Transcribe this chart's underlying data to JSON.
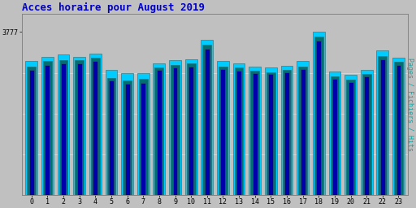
{
  "title": "Acces horaire pour August 2019",
  "title_color": "#0000cc",
  "title_fontsize": 9,
  "ylabel_right": "Pages / Fichiers / Hits",
  "ylabel_right_color": "#00aaaa",
  "background_color": "#c0c0c0",
  "plot_bg_color": "#c0c0c0",
  "hours": [
    0,
    1,
    2,
    3,
    4,
    5,
    6,
    7,
    8,
    9,
    10,
    11,
    12,
    13,
    14,
    15,
    16,
    17,
    18,
    19,
    20,
    21,
    22,
    23
  ],
  "hits": [
    3100,
    3200,
    3250,
    3200,
    3280,
    2900,
    2820,
    2820,
    3050,
    3120,
    3150,
    3600,
    3100,
    3050,
    2980,
    2950,
    3000,
    3100,
    3777,
    2870,
    2780,
    2900,
    3350,
    3180
  ],
  "pages": [
    2980,
    3100,
    3120,
    3120,
    3180,
    2720,
    2650,
    2700,
    2950,
    3020,
    3050,
    3480,
    2980,
    2950,
    2880,
    2850,
    2900,
    2980,
    3680,
    2750,
    2680,
    2800,
    3230,
    3080
  ],
  "fichiers": [
    2900,
    3020,
    3050,
    3050,
    3100,
    2650,
    2580,
    2600,
    2900,
    2950,
    2980,
    3400,
    2920,
    2880,
    2820,
    2800,
    2850,
    2920,
    3580,
    2700,
    2620,
    2750,
    3150,
    3020
  ],
  "hits_color": "#00ccff",
  "pages_color": "#007070",
  "fichiers_color": "#0000aa",
  "bar_edge_color": "#336666",
  "ymax": 4200,
  "ytick_label": "3777",
  "ytick_val": 3777,
  "font_family": "monospace"
}
